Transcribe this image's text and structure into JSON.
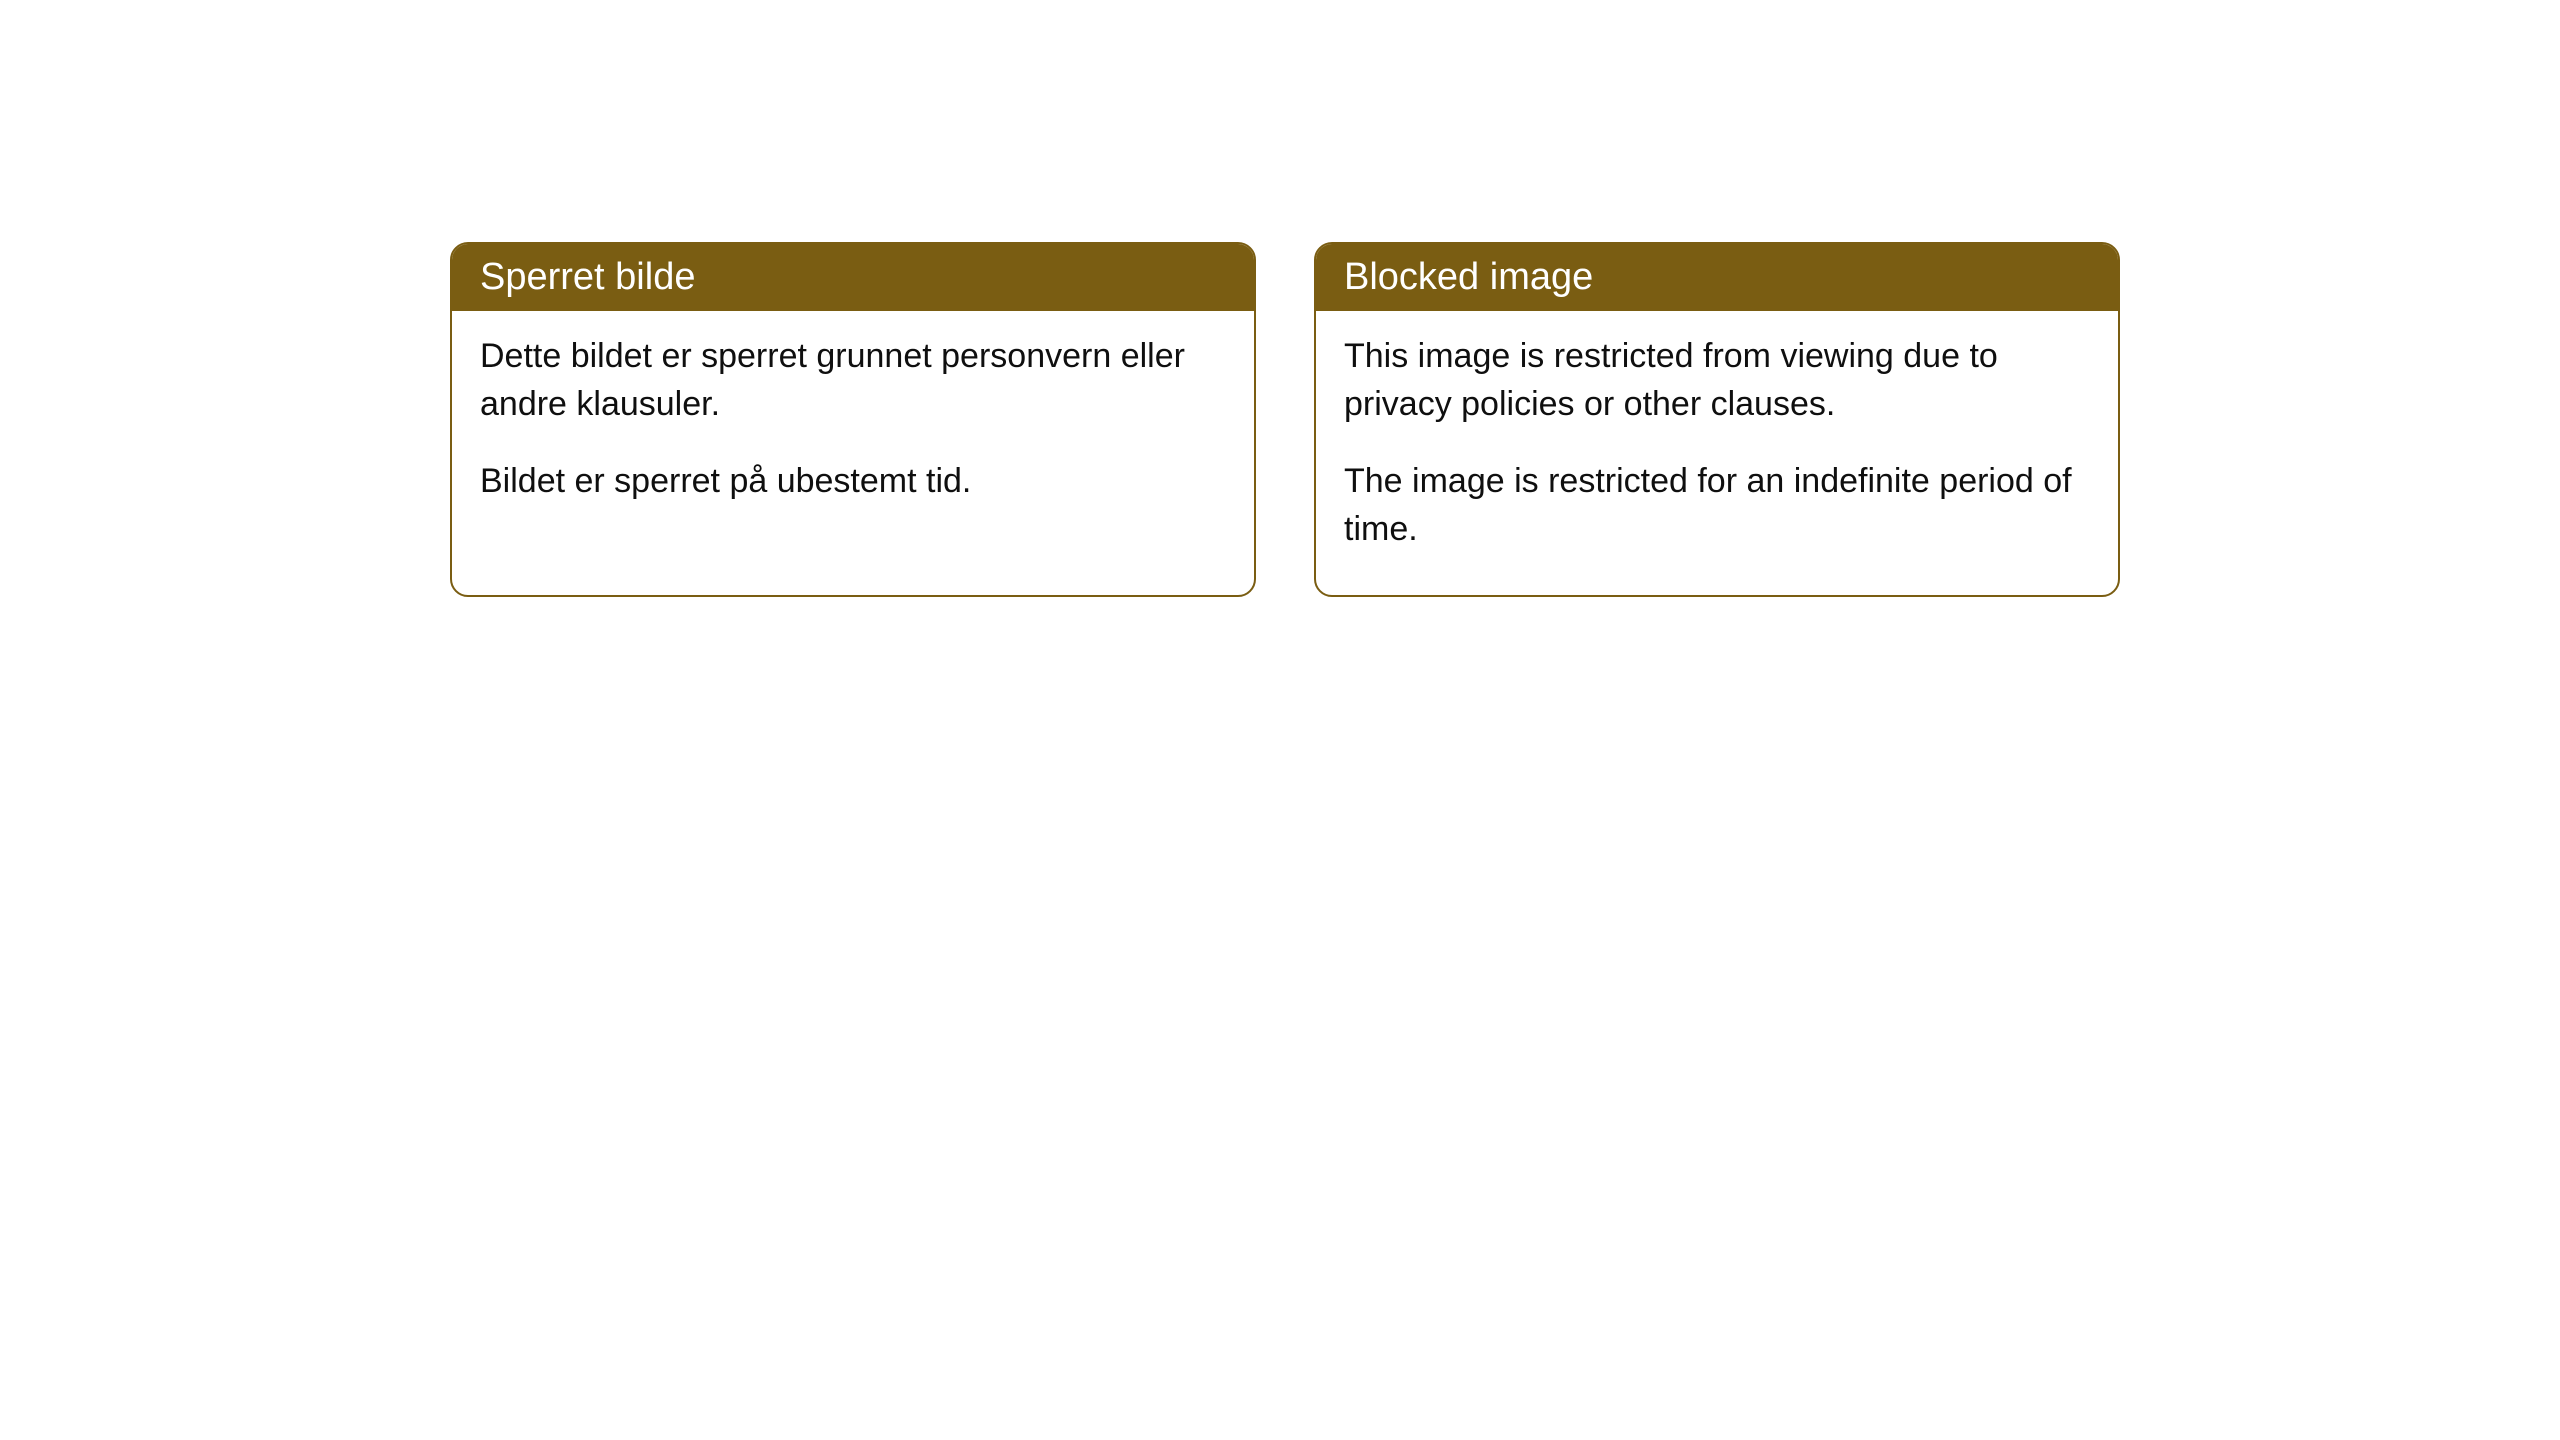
{
  "cards": {
    "left": {
      "title": "Sperret bilde",
      "paragraph1": "Dette bildet er sperret grunnet personvern eller andre klausuler.",
      "paragraph2": "Bildet er sperret på ubestemt tid."
    },
    "right": {
      "title": "Blocked image",
      "paragraph1": "This image is restricted from viewing due to privacy policies or other clauses.",
      "paragraph2": "The image is restricted for an indefinite period of time."
    }
  },
  "colors": {
    "header_bg": "#7a5d12",
    "header_text": "#ffffff",
    "body_text": "#0f0f0f",
    "border": "#7a5d12",
    "page_bg": "#ffffff"
  }
}
